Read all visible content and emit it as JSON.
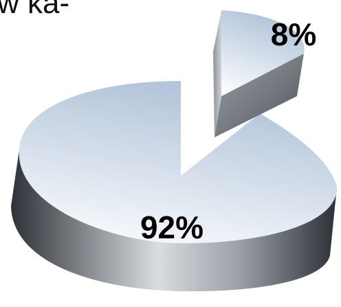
{
  "header": {
    "clipped_text": "w ka-"
  },
  "chart_data": {
    "type": "pie",
    "style": "3d-exploded",
    "slices": [
      {
        "label": "8%",
        "value": 8
      },
      {
        "label": "92%",
        "value": 92
      }
    ],
    "colors": {
      "top_light": "#ffffff",
      "top_dark": "#b3c5da",
      "side_light": "#d5d9de",
      "side_dark": "#2c3036",
      "label": "#000000"
    }
  }
}
